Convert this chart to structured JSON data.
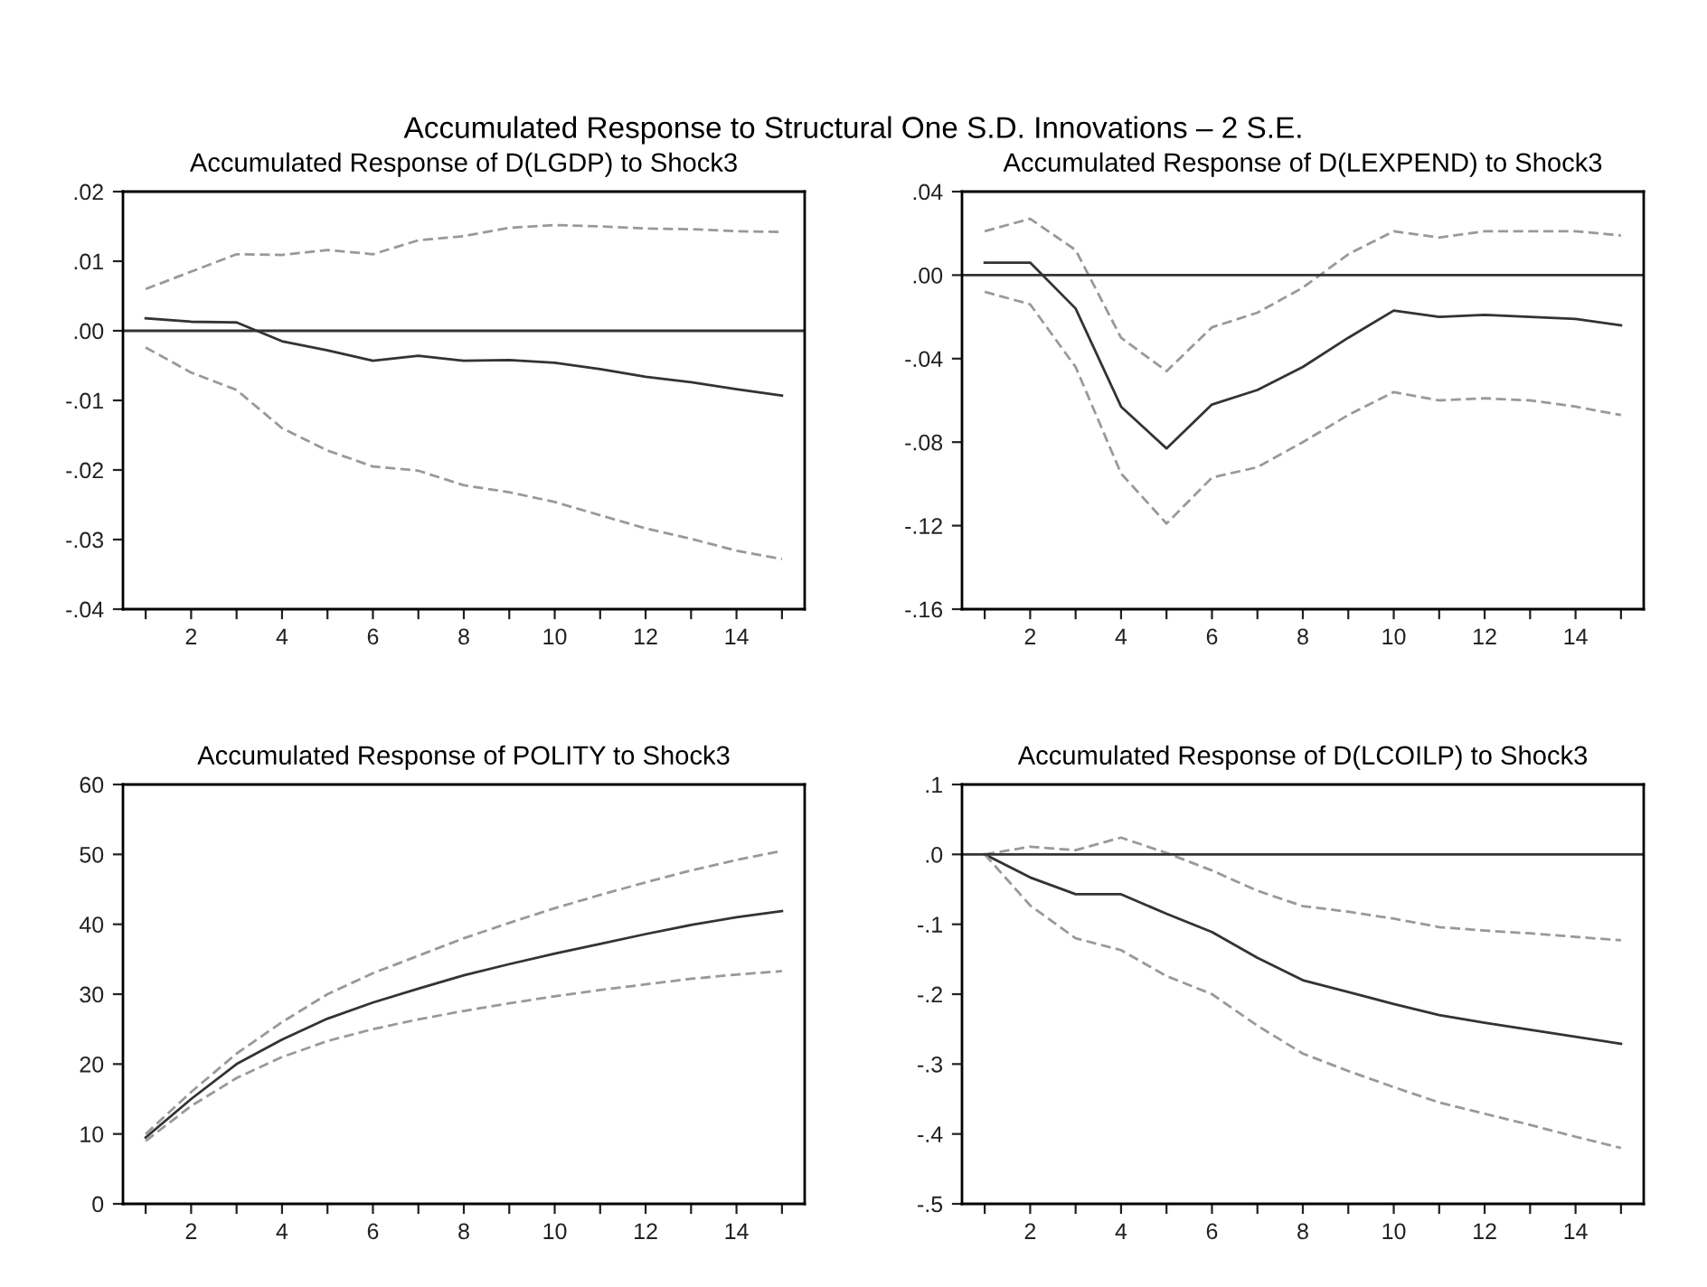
{
  "chart_data": [
    {
      "type": "line",
      "title": "Accumulated Response of D(LGDP) to Shock3",
      "annotations": [
        "Accumulated Response to Structural One S.D. Innovations – 2 S.E."
      ],
      "x": [
        1,
        2,
        3,
        4,
        5,
        6,
        7,
        8,
        9,
        10,
        11,
        12,
        13,
        14,
        15
      ],
      "series": [
        {
          "color": "#999999",
          "line_style": "dashed",
          "values": [
            0.006,
            0.0085,
            0.011,
            0.0109,
            0.0116,
            0.011,
            0.013,
            0.0136,
            0.0148,
            0.0152,
            0.015,
            0.0147,
            0.0146,
            0.0143,
            0.0142
          ]
        },
        {
          "color": "#333333",
          "line_style": "solid",
          "values": [
            0.0018,
            0.0013,
            0.0012,
            -0.0015,
            -0.0028,
            -0.0043,
            -0.0036,
            -0.0043,
            -0.0042,
            -0.0046,
            -0.0055,
            -0.0066,
            -0.0074,
            -0.0084,
            -0.0093
          ]
        },
        {
          "color": "#999999",
          "line_style": "dashed",
          "values": [
            -0.0024,
            -0.006,
            -0.0085,
            -0.014,
            -0.0172,
            -0.0195,
            -0.0201,
            -0.0222,
            -0.0232,
            -0.0246,
            -0.0265,
            -0.0284,
            -0.0299,
            -0.0316,
            -0.0328
          ]
        }
      ],
      "xlim": [
        0.5,
        15.5
      ],
      "xticks": [
        {
          "value": 1,
          "label": null
        },
        2,
        {
          "value": 3,
          "label": null
        },
        4,
        {
          "value": 5,
          "label": null
        },
        6,
        {
          "value": 7,
          "label": null
        },
        8,
        {
          "value": 9,
          "label": null
        },
        10,
        {
          "value": 11,
          "label": null
        },
        12,
        {
          "value": 13,
          "label": null
        },
        14,
        {
          "value": 15,
          "label": null
        }
      ],
      "ylim": [
        -0.04,
        0.02
      ],
      "yticks": [
        {
          "value": -0.04,
          "label": "-.04"
        },
        {
          "value": -0.03,
          "label": "-.03"
        },
        {
          "value": -0.02,
          "label": "-.02"
        },
        {
          "value": -0.01,
          "label": "-.01"
        },
        {
          "value": 0,
          "label": ".00"
        },
        {
          "value": 0.01,
          "label": ".01"
        },
        {
          "value": 0.02,
          "label": ".02"
        }
      ],
      "ref_lines": [
        {
          "axis": "y",
          "value": 0,
          "color": "#333333"
        }
      ]
    },
    {
      "type": "line",
      "title": "Accumulated Response of D(LEXPEND) to Shock3",
      "x": [
        1,
        2,
        3,
        4,
        5,
        6,
        7,
        8,
        9,
        10,
        11,
        12,
        13,
        14,
        15
      ],
      "series": [
        {
          "color": "#999999",
          "line_style": "dashed",
          "values": [
            0.021,
            0.027,
            0.012,
            -0.03,
            -0.046,
            -0.025,
            -0.018,
            -0.006,
            0.01,
            0.021,
            0.018,
            0.021,
            0.021,
            0.021,
            0.019
          ]
        },
        {
          "color": "#333333",
          "line_style": "solid",
          "values": [
            0.006,
            0.006,
            -0.016,
            -0.063,
            -0.083,
            -0.062,
            -0.055,
            -0.044,
            -0.03,
            -0.017,
            -0.02,
            -0.019,
            -0.02,
            -0.021,
            -0.024
          ]
        },
        {
          "color": "#999999",
          "line_style": "dashed",
          "values": [
            -0.008,
            -0.014,
            -0.044,
            -0.095,
            -0.119,
            -0.097,
            -0.092,
            -0.08,
            -0.067,
            -0.056,
            -0.06,
            -0.059,
            -0.06,
            -0.063,
            -0.067
          ]
        }
      ],
      "xlim": [
        0.5,
        15.5
      ],
      "xticks": [
        {
          "value": 1,
          "label": null
        },
        2,
        {
          "value": 3,
          "label": null
        },
        4,
        {
          "value": 5,
          "label": null
        },
        6,
        {
          "value": 7,
          "label": null
        },
        8,
        {
          "value": 9,
          "label": null
        },
        10,
        {
          "value": 11,
          "label": null
        },
        12,
        {
          "value": 13,
          "label": null
        },
        14,
        {
          "value": 15,
          "label": null
        }
      ],
      "ylim": [
        -0.16,
        0.04
      ],
      "yticks": [
        {
          "value": -0.16,
          "label": "-.16"
        },
        {
          "value": -0.12,
          "label": "-.12"
        },
        {
          "value": -0.08,
          "label": "-.08"
        },
        {
          "value": -0.04,
          "label": "-.04"
        },
        {
          "value": 0,
          "label": ".00"
        },
        {
          "value": 0.04,
          "label": ".04"
        }
      ],
      "ref_lines": [
        {
          "axis": "y",
          "value": 0,
          "color": "#333333"
        }
      ]
    },
    {
      "type": "line",
      "title": "Accumulated Response of POLITY to Shock3",
      "x": [
        1,
        2,
        3,
        4,
        5,
        6,
        7,
        8,
        9,
        10,
        11,
        12,
        13,
        14,
        15
      ],
      "series": [
        {
          "color": "#999999",
          "line_style": "dashed",
          "values": [
            10,
            16,
            21.5,
            26,
            30,
            33,
            35.5,
            38,
            40.2,
            42.3,
            44.2,
            46,
            47.7,
            49.2,
            50.5
          ]
        },
        {
          "color": "#333333",
          "line_style": "solid",
          "values": [
            9.5,
            15,
            20,
            23.5,
            26.5,
            28.8,
            30.8,
            32.7,
            34.3,
            35.8,
            37.2,
            38.6,
            39.9,
            41,
            41.9
          ]
        },
        {
          "color": "#999999",
          "line_style": "dashed",
          "values": [
            9,
            14,
            18,
            21,
            23.3,
            25,
            26.4,
            27.6,
            28.7,
            29.7,
            30.6,
            31.4,
            32.2,
            32.8,
            33.3
          ]
        }
      ],
      "xlim": [
        0.5,
        15.5
      ],
      "xticks": [
        {
          "value": 1,
          "label": null
        },
        2,
        {
          "value": 3,
          "label": null
        },
        4,
        {
          "value": 5,
          "label": null
        },
        6,
        {
          "value": 7,
          "label": null
        },
        8,
        {
          "value": 9,
          "label": null
        },
        10,
        {
          "value": 11,
          "label": null
        },
        12,
        {
          "value": 13,
          "label": null
        },
        14,
        {
          "value": 15,
          "label": null
        }
      ],
      "ylim": [
        0,
        60
      ],
      "yticks": [
        0,
        10,
        20,
        30,
        40,
        50,
        60
      ]
    },
    {
      "type": "line",
      "title": "Accumulated Response of D(LCOILP) to Shock3",
      "x": [
        1,
        2,
        3,
        4,
        5,
        6,
        7,
        8,
        9,
        10,
        11,
        12,
        13,
        14,
        15
      ],
      "series": [
        {
          "color": "#999999",
          "line_style": "dashed",
          "values": [
            0,
            0.011,
            0.006,
            0.024,
            0.002,
            -0.023,
            -0.052,
            -0.074,
            -0.082,
            -0.092,
            -0.104,
            -0.109,
            -0.113,
            -0.118,
            -0.123
          ]
        },
        {
          "color": "#333333",
          "line_style": "solid",
          "values": [
            0,
            -0.033,
            -0.057,
            -0.057,
            -0.085,
            -0.111,
            -0.148,
            -0.18,
            -0.197,
            -0.214,
            -0.23,
            -0.241,
            -0.251,
            -0.261,
            -0.271
          ]
        },
        {
          "color": "#999999",
          "line_style": "dashed",
          "values": [
            0,
            -0.073,
            -0.12,
            -0.137,
            -0.174,
            -0.2,
            -0.245,
            -0.285,
            -0.31,
            -0.333,
            -0.355,
            -0.371,
            -0.387,
            -0.404,
            -0.42
          ]
        }
      ],
      "xlim": [
        0.5,
        15.5
      ],
      "xticks": [
        {
          "value": 1,
          "label": null
        },
        2,
        {
          "value": 3,
          "label": null
        },
        4,
        {
          "value": 5,
          "label": null
        },
        6,
        {
          "value": 7,
          "label": null
        },
        8,
        {
          "value": 9,
          "label": null
        },
        10,
        {
          "value": 11,
          "label": null
        },
        12,
        {
          "value": 13,
          "label": null
        },
        14,
        {
          "value": 15,
          "label": null
        }
      ],
      "ylim": [
        -0.5,
        0.1
      ],
      "yticks": [
        {
          "value": -0.5,
          "label": "-.5"
        },
        {
          "value": -0.4,
          "label": "-.4"
        },
        {
          "value": -0.3,
          "label": "-.3"
        },
        {
          "value": -0.2,
          "label": "-.2"
        },
        {
          "value": -0.1,
          "label": "-.1"
        },
        {
          "value": 0,
          "label": ".0"
        },
        {
          "value": 0.1,
          "label": ".1"
        }
      ],
      "ref_lines": [
        {
          "axis": "y",
          "value": 0,
          "color": "#333333"
        }
      ]
    }
  ]
}
